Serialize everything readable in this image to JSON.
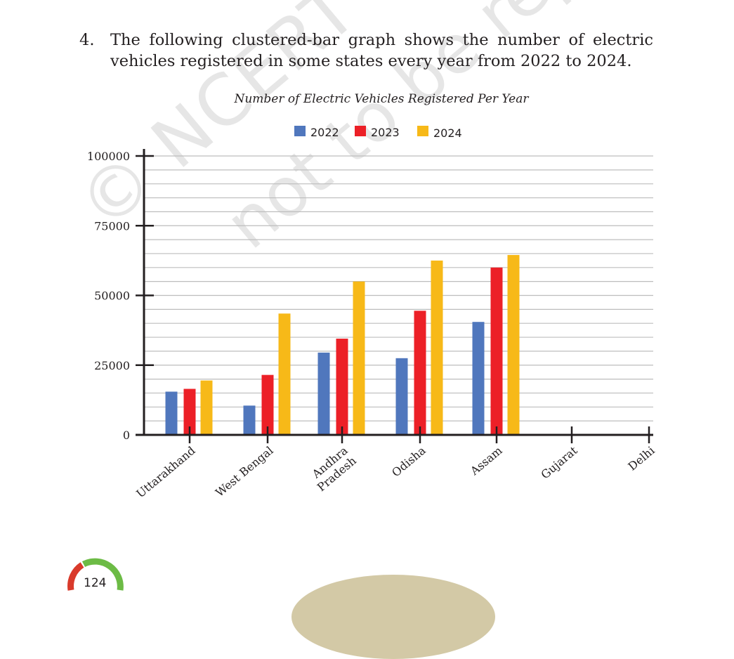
{
  "question": {
    "number": "4.",
    "text": "The following clustered-bar graph shows the number of electric vehicles registered in some states every year from 2022 to 2024."
  },
  "watermark": {
    "line1": "© NCERT",
    "line2": "not to be republished"
  },
  "page_number": "124",
  "colors": {
    "2022": "#5077bd",
    "2023": "#ec2027",
    "2024": "#f7b918",
    "grid": "#bdbdbd",
    "axis": "#231f20"
  },
  "chart_data": {
    "type": "bar",
    "title": "Number of Electric Vehicles Registered Per Year",
    "categories": [
      "Uttarakhand",
      "West Bengal",
      "Andhra Pradesh",
      "Odisha",
      "Assam",
      "Gujarat",
      "Delhi"
    ],
    "category_lines": [
      [
        "Uttarakhand"
      ],
      [
        "West Bengal"
      ],
      [
        "Andhra",
        "Pradesh"
      ],
      [
        "Odisha"
      ],
      [
        "Assam"
      ],
      [
        "Gujarat"
      ],
      [
        "Delhi"
      ]
    ],
    "series": [
      {
        "name": "2022",
        "color": "#5077bd",
        "values": [
          15500,
          10500,
          29500,
          27500,
          40500,
          null,
          null
        ]
      },
      {
        "name": "2023",
        "color": "#ec2027",
        "values": [
          16500,
          21500,
          34500,
          44500,
          60000,
          null,
          null
        ]
      },
      {
        "name": "2024",
        "color": "#f7b918",
        "values": [
          19500,
          43500,
          55000,
          62500,
          64500,
          null,
          null
        ]
      }
    ],
    "ylim": [
      0,
      100000
    ],
    "yticks": [
      0,
      25000,
      50000,
      75000,
      100000
    ],
    "ytick_labels": [
      "0",
      "25000",
      "50000",
      "75000",
      "100000"
    ],
    "minor_gridline_step": 5000,
    "grid": true,
    "legend": "top-center",
    "xlabel": "",
    "ylabel": ""
  }
}
